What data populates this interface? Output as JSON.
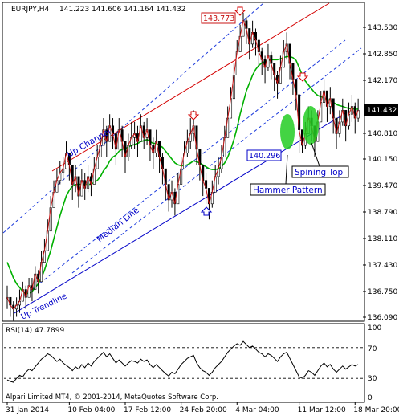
{
  "header": {
    "symbol": "EURJPY,H4",
    "ohlc": "141.223 141.606 141.164 141.432"
  },
  "colors": {
    "background": "#ffffff",
    "frame": "#000000",
    "candle": "#000000",
    "line_series": "#c81414",
    "ma": "#00b000",
    "channel": "#d40000",
    "trend": "#0000c8",
    "dashed": "#1e3cdc",
    "arrow": "#d40000",
    "up_arrow": "#0000c8",
    "label_text": "#0000c8",
    "price_tag_bg": "#ffffff",
    "rsi_line": "#000000",
    "rsi_level": "#000000",
    "ellipse": "#22cc22"
  },
  "annotations": {
    "high_price": "143.773",
    "low_price": "140.296",
    "current_price": "141.432",
    "up_channel": "Up Channel",
    "median_line": "Median Line",
    "up_trendline": "Up Trendline",
    "spining_top": "Spining Top",
    "hammer_pattern": "Hammer Pattern",
    "down_arrow_icon": "down-arrow-icon",
    "up_arrow_icon": "up-arrow-icon"
  },
  "rsi": {
    "label": "RSI(14) 47.7899",
    "levels": [
      70,
      30
    ],
    "scale_labels": [
      "100",
      "70",
      "30",
      "0"
    ]
  },
  "footer": {
    "copyright": "Alpari Limited MT4, © 2001-2014, MetaQuotes Software Corp."
  },
  "chart_data": {
    "type": "candlestick",
    "symbol": "EURJPY",
    "timeframe": "H4",
    "ylim": [
      136.0,
      144.0
    ],
    "y_ticks": [
      "143.530",
      "142.850",
      "142.170",
      "141.432",
      "140.810",
      "140.150",
      "139.470",
      "138.790",
      "138.110",
      "137.430",
      "136.750",
      "136.090"
    ],
    "x_ticks": [
      "31 Jan 2014",
      "10 Feb 04:00",
      "17 Feb 12:00",
      "24 Feb 20:00",
      "4 Mar 04:00",
      "11 Mar 12:00",
      "18 Mar 20:00"
    ],
    "x_tick_index": [
      0,
      20,
      38,
      56,
      74,
      94,
      112
    ],
    "close": [
      136.6,
      136.4,
      136.3,
      136.4,
      136.5,
      136.8,
      136.6,
      136.9,
      136.8,
      137.2,
      137.0,
      137.5,
      137.8,
      138.3,
      138.9,
      139.3,
      139.6,
      139.8,
      139.9,
      140.3,
      140.0,
      139.5,
      139.7,
      139.2,
      139.6,
      139.4,
      139.7,
      139.5,
      139.9,
      140.2,
      140.5,
      140.9,
      140.6,
      141.0,
      140.8,
      140.4,
      140.9,
      140.6,
      140.2,
      140.5,
      140.7,
      140.8,
      140.6,
      141.0,
      140.7,
      140.9,
      140.5,
      140.3,
      140.6,
      140.2,
      139.9,
      139.5,
      139.1,
      139.3,
      139.0,
      139.5,
      139.9,
      140.3,
      140.6,
      140.8,
      141.0,
      140.4,
      140.0,
      139.6,
      139.4,
      139.0,
      139.3,
      139.7,
      139.9,
      140.2,
      140.7,
      141.2,
      141.7,
      142.3,
      142.9,
      143.3,
      143.7,
      143.5,
      143.1,
      143.4,
      143.2,
      142.9,
      142.7,
      142.5,
      142.8,
      142.6,
      142.3,
      142.1,
      142.5,
      142.9,
      143.1,
      142.6,
      142.2,
      141.8,
      140.9,
      140.5,
      140.8,
      141.2,
      141.0,
      140.6,
      141.1,
      141.6,
      141.9,
      141.5,
      141.7,
      141.2,
      140.8,
      141.1,
      141.4,
      141.0,
      141.3,
      141.5,
      141.2,
      141.4
    ],
    "high": [
      136.9,
      136.6,
      136.5,
      136.6,
      136.8,
      137.0,
      136.9,
      137.1,
      137.1,
      137.4,
      137.3,
      137.8,
      138.1,
      138.6,
      139.2,
      139.6,
      139.9,
      140.1,
      140.2,
      140.6,
      140.3,
      139.9,
      140.0,
      139.6,
      139.9,
      139.8,
      140.0,
      139.8,
      140.2,
      140.5,
      140.8,
      141.2,
      141.0,
      141.3,
      141.2,
      140.8,
      141.2,
      141.0,
      140.6,
      140.8,
      141.1,
      141.1,
      141.0,
      141.3,
      141.1,
      141.2,
      140.9,
      140.7,
      140.9,
      140.6,
      140.3,
      139.9,
      139.5,
      139.6,
      139.4,
      139.8,
      140.2,
      140.6,
      140.9,
      141.2,
      141.4,
      140.8,
      140.4,
      140.0,
      139.8,
      139.4,
      139.6,
      140.0,
      140.2,
      140.5,
      141.0,
      141.5,
      142.0,
      142.6,
      143.2,
      143.6,
      143.9,
      143.8,
      143.5,
      143.7,
      143.5,
      143.2,
      143.0,
      142.8,
      143.1,
      142.9,
      142.6,
      142.4,
      142.8,
      143.2,
      143.4,
      143.0,
      142.6,
      142.2,
      141.4,
      140.9,
      141.1,
      141.5,
      141.4,
      141.0,
      141.4,
      141.9,
      142.2,
      141.9,
      142.0,
      141.6,
      141.2,
      141.4,
      141.7,
      141.4,
      141.6,
      141.8,
      141.6,
      141.7
    ],
    "low": [
      136.3,
      136.1,
      136.0,
      136.1,
      136.2,
      136.5,
      136.3,
      136.6,
      136.5,
      136.9,
      136.7,
      137.2,
      137.5,
      138.0,
      138.6,
      139.0,
      139.3,
      139.5,
      139.6,
      140.0,
      139.6,
      139.1,
      139.3,
      138.9,
      139.2,
      139.1,
      139.3,
      139.2,
      139.5,
      139.9,
      140.2,
      140.5,
      140.2,
      140.6,
      140.4,
      140.0,
      140.5,
      140.2,
      139.8,
      140.1,
      140.4,
      140.4,
      140.2,
      140.6,
      140.4,
      140.5,
      140.1,
      139.9,
      140.2,
      139.8,
      139.5,
      139.1,
      138.8,
      138.9,
      138.7,
      139.1,
      139.5,
      139.9,
      140.2,
      140.4,
      140.6,
      140.0,
      139.6,
      139.2,
      139.0,
      138.6,
      138.9,
      139.3,
      139.5,
      139.8,
      140.3,
      140.8,
      141.3,
      141.9,
      142.5,
      142.9,
      143.3,
      143.1,
      142.7,
      143.0,
      142.8,
      142.5,
      142.3,
      142.1,
      142.4,
      142.2,
      141.9,
      141.7,
      142.1,
      142.5,
      142.7,
      142.2,
      141.8,
      141.4,
      140.3,
      140.3,
      140.4,
      140.8,
      140.6,
      140.2,
      140.7,
      141.2,
      141.5,
      141.1,
      141.3,
      140.8,
      140.4,
      140.7,
      141.0,
      140.6,
      140.9,
      141.1,
      140.8,
      141.1
    ],
    "ma": [
      137.5,
      137.3,
      137.1,
      136.95,
      136.85,
      136.75,
      136.7,
      136.7,
      136.75,
      136.85,
      136.95,
      137.1,
      137.3,
      137.55,
      137.8,
      138.1,
      138.4,
      138.7,
      138.95,
      139.2,
      139.35,
      139.45,
      139.5,
      139.5,
      139.5,
      139.5,
      139.5,
      139.5,
      139.55,
      139.6,
      139.7,
      139.85,
      139.95,
      140.1,
      140.2,
      140.25,
      140.35,
      140.4,
      140.42,
      140.45,
      140.5,
      140.52,
      140.55,
      140.6,
      140.62,
      140.65,
      140.6,
      140.55,
      140.55,
      140.5,
      140.45,
      140.35,
      140.25,
      140.15,
      140.05,
      140.0,
      139.98,
      139.98,
      140.0,
      140.05,
      140.1,
      140.08,
      140.05,
      140.0,
      139.95,
      139.9,
      139.88,
      139.88,
      139.9,
      139.95,
      140.05,
      140.2,
      140.4,
      140.65,
      140.95,
      141.3,
      141.6,
      141.9,
      142.1,
      142.3,
      142.45,
      142.55,
      142.62,
      142.65,
      142.68,
      142.7,
      142.7,
      142.7,
      142.72,
      142.75,
      142.78,
      142.78,
      142.75,
      142.68,
      142.5,
      142.3,
      142.15,
      142.05,
      141.95,
      141.85,
      141.78,
      141.75,
      141.72,
      141.68,
      141.65,
      141.6,
      141.55,
      141.52,
      141.5,
      141.47,
      141.45,
      141.44,
      141.43,
      141.43
    ],
    "rsi_values": [
      28,
      26,
      25,
      30,
      34,
      32,
      38,
      42,
      40,
      45,
      50,
      55,
      58,
      62,
      60,
      56,
      52,
      55,
      50,
      47,
      44,
      40,
      45,
      42,
      48,
      44,
      50,
      46,
      52,
      56,
      60,
      64,
      58,
      62,
      56,
      50,
      54,
      50,
      46,
      50,
      53,
      52,
      50,
      55,
      52,
      54,
      48,
      44,
      48,
      44,
      40,
      36,
      33,
      38,
      36,
      42,
      48,
      52,
      56,
      58,
      60,
      50,
      44,
      40,
      38,
      34,
      38,
      44,
      48,
      52,
      58,
      64,
      68,
      72,
      75,
      73,
      78,
      74,
      70,
      72,
      68,
      64,
      62,
      58,
      62,
      60,
      56,
      52,
      58,
      62,
      64,
      56,
      48,
      40,
      32,
      30,
      34,
      40,
      38,
      34,
      40,
      46,
      50,
      45,
      48,
      42,
      38,
      42,
      46,
      42,
      45,
      48,
      46,
      48
    ]
  }
}
